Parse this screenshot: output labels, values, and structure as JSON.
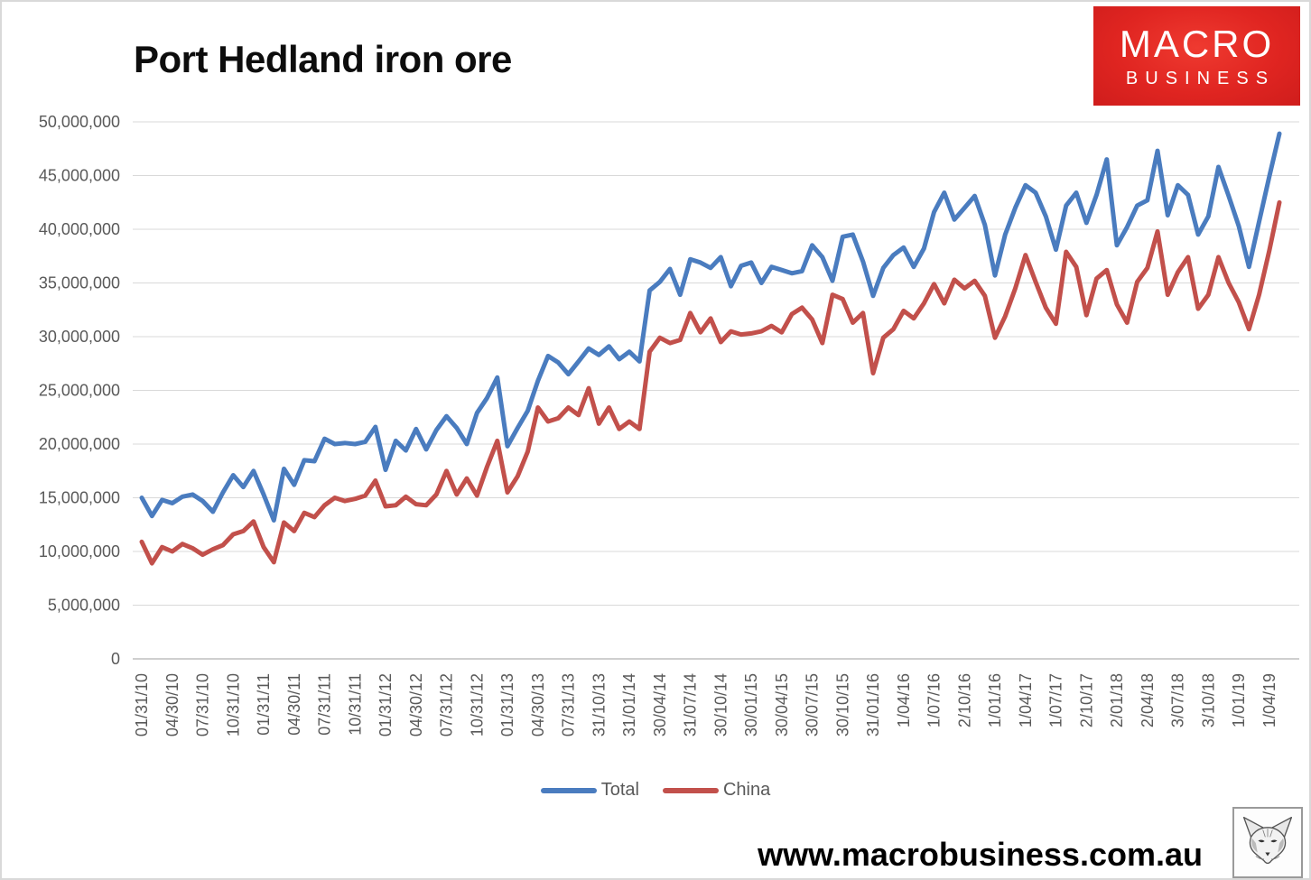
{
  "title": "Port Hedland iron ore",
  "logo": {
    "line1": "MACRO",
    "line2": "BUSINESS",
    "bg_color": "#e02521",
    "text_color": "#ffffff"
  },
  "watermark_url": "www.macrobusiness.com.au",
  "fox_logo": "fox-icon",
  "colors": {
    "grid": "#d9d9d9",
    "axis_line": "#bfbfbf",
    "axis_text": "#595959",
    "total_line": "#4A7CBF",
    "china_line": "#C2504B"
  },
  "chart_data": {
    "type": "line",
    "title": "Port Hedland iron ore",
    "xlabel": "",
    "ylabel": "",
    "ylim": [
      0,
      50000000
    ],
    "ytick_step": 5000000,
    "grid": true,
    "legend_position": "bottom",
    "ytick_labels": [
      "50,000,000",
      "45,000,000",
      "40,000,000",
      "35,000,000",
      "30,000,000",
      "25,000,000",
      "20,000,000",
      "15,000,000",
      "10,000,000",
      "5,000,000",
      "0"
    ],
    "x_tick_every": 3,
    "x_tick_labels": [
      "01/31/10",
      "04/30/10",
      "07/31/10",
      "10/31/10",
      "01/31/11",
      "04/30/11",
      "07/31/11",
      "10/31/11",
      "01/31/12",
      "04/30/12",
      "07/31/12",
      "10/31/12",
      "01/31/13",
      "04/30/13",
      "07/31/13",
      "31/10/13",
      "31/01/14",
      "30/04/14",
      "31/07/14",
      "30/10/14",
      "30/01/15",
      "30/04/15",
      "30/07/15",
      "30/10/15",
      "31/01/16",
      "1/04/16",
      "1/07/16",
      "2/10/16",
      "1/01/16",
      "1/04/17",
      "1/07/17",
      "2/10/17",
      "2/01/18",
      "2/04/18",
      "3/07/18",
      "3/10/18",
      "1/01/19",
      "1/04/19"
    ],
    "series": [
      {
        "name": "Total",
        "color": "#4A7CBF",
        "values": [
          15000000,
          13300000,
          14800000,
          14500000,
          15100000,
          15300000,
          14700000,
          13700000,
          15500000,
          17100000,
          16000000,
          17500000,
          15300000,
          12900000,
          17700000,
          16200000,
          18500000,
          18400000,
          20500000,
          20000000,
          20100000,
          20000000,
          20200000,
          21600000,
          17600000,
          20300000,
          19400000,
          21400000,
          19500000,
          21300000,
          22600000,
          21500000,
          20000000,
          22900000,
          24300000,
          26200000,
          19800000,
          21500000,
          23100000,
          25900000,
          28200000,
          27600000,
          26500000,
          27700000,
          28900000,
          28300000,
          29100000,
          27900000,
          28600000,
          27700000,
          34300000,
          35100000,
          36300000,
          33900000,
          37200000,
          36900000,
          36400000,
          37400000,
          34700000,
          36600000,
          36900000,
          35000000,
          36500000,
          36200000,
          35900000,
          36100000,
          38500000,
          37400000,
          35200000,
          39300000,
          39500000,
          37000000,
          33800000,
          36400000,
          37600000,
          38300000,
          36500000,
          38200000,
          41600000,
          43400000,
          40900000,
          42000000,
          43100000,
          40400000,
          35700000,
          39500000,
          42000000,
          44100000,
          43400000,
          41200000,
          38100000,
          42200000,
          43400000,
          40600000,
          43200000,
          46500000,
          38500000,
          40200000,
          42200000,
          42700000,
          47300000,
          41300000,
          44100000,
          43200000,
          39500000,
          41200000,
          45800000,
          43100000,
          40300000,
          36500000,
          40700000,
          44900000,
          48900000
        ]
      },
      {
        "name": "China",
        "color": "#C2504B",
        "values": [
          10900000,
          8900000,
          10400000,
          10000000,
          10700000,
          10300000,
          9700000,
          10200000,
          10600000,
          11600000,
          11900000,
          12800000,
          10400000,
          9000000,
          12700000,
          11900000,
          13600000,
          13200000,
          14300000,
          15000000,
          14700000,
          14900000,
          15200000,
          16600000,
          14200000,
          14300000,
          15100000,
          14400000,
          14300000,
          15300000,
          17500000,
          15300000,
          16800000,
          15200000,
          17900000,
          20300000,
          15500000,
          17000000,
          19300000,
          23400000,
          22100000,
          22400000,
          23400000,
          22700000,
          25200000,
          21900000,
          23400000,
          21400000,
          22100000,
          21400000,
          28600000,
          29900000,
          29400000,
          29700000,
          32200000,
          30400000,
          31700000,
          29500000,
          30500000,
          30200000,
          30300000,
          30500000,
          31000000,
          30400000,
          32100000,
          32700000,
          31600000,
          29400000,
          33900000,
          33500000,
          31300000,
          32200000,
          26600000,
          29900000,
          30700000,
          32400000,
          31700000,
          33100000,
          34900000,
          33100000,
          35300000,
          34500000,
          35200000,
          33800000,
          29900000,
          31900000,
          34500000,
          37600000,
          35100000,
          32700000,
          31200000,
          37900000,
          36500000,
          32000000,
          35400000,
          36200000,
          33000000,
          31300000,
          35100000,
          36400000,
          39800000,
          33900000,
          36000000,
          37400000,
          32600000,
          33900000,
          37400000,
          35000000,
          33200000,
          30700000,
          33900000,
          38000000,
          42500000
        ]
      }
    ]
  },
  "legend": {
    "items": [
      {
        "label": "Total",
        "color": "#4A7CBF"
      },
      {
        "label": "China",
        "color": "#C2504B"
      }
    ]
  }
}
